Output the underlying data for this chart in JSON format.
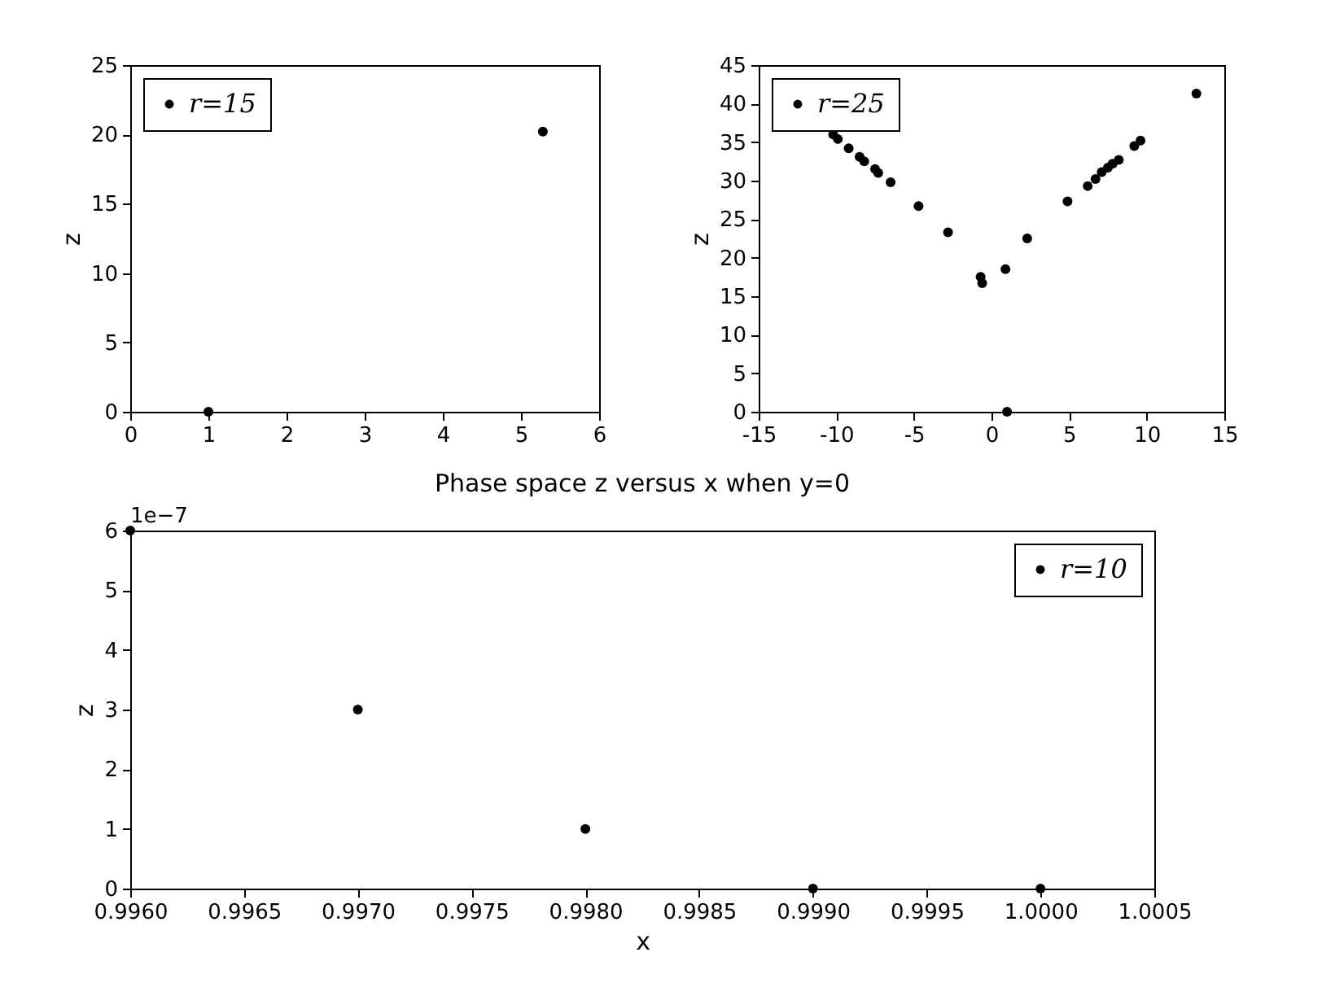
{
  "chart_data": [
    {
      "type": "scatter",
      "ylabel": "z",
      "xlim": [
        0,
        6
      ],
      "xticks": [
        0,
        1,
        2,
        3,
        4,
        5,
        6
      ],
      "ylim": [
        0,
        25
      ],
      "yticks": [
        0,
        5,
        10,
        15,
        20,
        25
      ],
      "grid": false,
      "legend": "top left",
      "marker": "circle",
      "series": [
        {
          "name": "r=15",
          "color": "#000000",
          "x": [
            1,
            5.28
          ],
          "values": [
            0,
            20.2
          ]
        }
      ]
    },
    {
      "type": "scatter",
      "ylabel": "z",
      "xlim": [
        -15,
        15
      ],
      "xticks": [
        -15,
        -10,
        -5,
        0,
        5,
        10,
        15
      ],
      "ylim": [
        0,
        45
      ],
      "yticks": [
        0,
        5,
        10,
        15,
        20,
        25,
        30,
        35,
        40,
        45
      ],
      "grid": false,
      "legend": "top left",
      "marker": "circle",
      "series": [
        {
          "name": "r=25",
          "color": "#000000",
          "x": [
            -10.2,
            -9.9,
            -9.2,
            -8.5,
            -8.2,
            -7.5,
            -7.3,
            -6.5,
            -4.7,
            -2.8,
            -0.7,
            -0.6,
            0.9,
            1,
            2.3,
            4.9,
            6.2,
            6.7,
            7.1,
            7.5,
            7.8,
            8.2,
            9.2,
            9.6,
            13.2
          ],
          "values": [
            36,
            35.4,
            34.2,
            33.1,
            32.5,
            31.5,
            31,
            29.8,
            26.7,
            23.3,
            17.5,
            16.7,
            18.5,
            0,
            22.5,
            27.3,
            29.3,
            30.2,
            31.1,
            31.7,
            32.2,
            32.7,
            34.5,
            35.2,
            41.3
          ]
        }
      ]
    },
    {
      "type": "scatter",
      "title": "Phase space z versus x when y=0",
      "xlabel": "x",
      "ylabel": "z",
      "annotations": [
        "1e−7"
      ],
      "xlim": [
        0.996,
        1.0005
      ],
      "xticks": [
        {
          "value": 0.996,
          "label": "0.9960"
        },
        {
          "value": 0.9965,
          "label": "0.9965"
        },
        {
          "value": 0.997,
          "label": "0.9970"
        },
        {
          "value": 0.9975,
          "label": "0.9975"
        },
        {
          "value": 0.998,
          "label": "0.9980"
        },
        {
          "value": 0.9985,
          "label": "0.9985"
        },
        {
          "value": 0.999,
          "label": "0.9990"
        },
        {
          "value": 0.9995,
          "label": "0.9995"
        },
        {
          "value": 1,
          "label": "1.0000"
        },
        {
          "value": 1.0005,
          "label": "1.0005"
        }
      ],
      "ylim": [
        0,
        6
      ],
      "yticks": [
        0,
        1,
        2,
        3,
        4,
        5,
        6
      ],
      "grid": false,
      "legend": "top right",
      "marker": "circle",
      "series": [
        {
          "name": "r=10",
          "color": "#000000",
          "x": [
            0.996,
            0.997,
            0.998,
            0.999,
            1
          ],
          "values": [
            6,
            3,
            1,
            0,
            0
          ]
        }
      ]
    }
  ]
}
